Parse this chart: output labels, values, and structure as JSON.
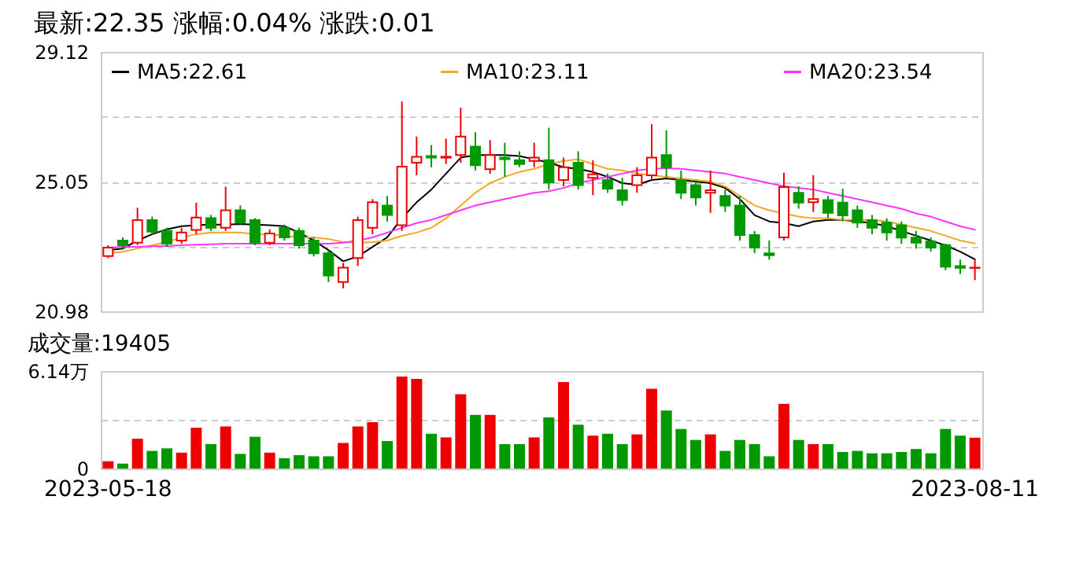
{
  "chart_data": [
    {
      "type": "candlestick",
      "title": "最新:22.35  涨幅:0.04%  涨跌:0.01",
      "categories": [
        "2023-05-18",
        null,
        null,
        null,
        null,
        null,
        null,
        null,
        null,
        null,
        null,
        null,
        null,
        null,
        null,
        null,
        null,
        null,
        null,
        null,
        null,
        null,
        null,
        null,
        null,
        null,
        null,
        null,
        null,
        null,
        null,
        null,
        null,
        null,
        null,
        null,
        null,
        null,
        null,
        null,
        null,
        null,
        null,
        null,
        null,
        null,
        null,
        null,
        null,
        null,
        null,
        null,
        null,
        null,
        null,
        null,
        null,
        null,
        null,
        "2023-08-11"
      ],
      "ohlc": [
        [
          22.71,
          23.05,
          22.65,
          22.98
        ],
        [
          23.2,
          23.3,
          22.95,
          23.05
        ],
        [
          23.13,
          24.23,
          23.06,
          23.84
        ],
        [
          23.84,
          23.95,
          23.4,
          23.48
        ],
        [
          23.5,
          23.6,
          23.0,
          23.1
        ],
        [
          23.2,
          23.6,
          23.1,
          23.45
        ],
        [
          23.53,
          24.39,
          23.4,
          23.92
        ],
        [
          23.9,
          24.0,
          23.5,
          23.6
        ],
        [
          23.6,
          24.89,
          23.5,
          24.15
        ],
        [
          24.15,
          24.3,
          23.7,
          23.76
        ],
        [
          23.84,
          23.9,
          23.05,
          23.13
        ],
        [
          23.13,
          23.55,
          23.05,
          23.42
        ],
        [
          23.6,
          23.7,
          23.2,
          23.3
        ],
        [
          23.5,
          23.6,
          22.95,
          23.05
        ],
        [
          23.2,
          23.3,
          22.7,
          22.8
        ],
        [
          22.8,
          22.9,
          21.9,
          22.1
        ],
        [
          21.9,
          22.5,
          21.7,
          22.35
        ],
        [
          22.65,
          23.95,
          22.4,
          23.84
        ],
        [
          23.6,
          24.5,
          23.4,
          24.4
        ],
        [
          24.3,
          24.6,
          23.8,
          24.0
        ],
        [
          23.68,
          27.56,
          23.5,
          25.52
        ],
        [
          25.64,
          26.46,
          25.25,
          25.83
        ],
        [
          25.85,
          26.2,
          25.5,
          25.8
        ],
        [
          25.8,
          26.4,
          25.6,
          25.83
        ],
        [
          25.88,
          27.37,
          25.64,
          26.46
        ],
        [
          26.15,
          26.6,
          25.4,
          25.56
        ],
        [
          25.44,
          26.35,
          25.3,
          25.88
        ],
        [
          25.8,
          26.27,
          25.2,
          25.75
        ],
        [
          25.72,
          26.0,
          25.5,
          25.6
        ],
        [
          25.7,
          26.27,
          25.5,
          25.8
        ],
        [
          25.72,
          26.74,
          24.8,
          25.02
        ],
        [
          25.1,
          25.8,
          24.9,
          25.5
        ],
        [
          25.64,
          26.0,
          24.8,
          24.94
        ],
        [
          25.17,
          25.72,
          24.62,
          25.28
        ],
        [
          25.1,
          25.3,
          24.7,
          24.83
        ],
        [
          24.78,
          25.17,
          24.3,
          24.47
        ],
        [
          24.94,
          25.5,
          24.7,
          25.25
        ],
        [
          25.25,
          26.85,
          25.1,
          25.8
        ],
        [
          25.88,
          26.66,
          25.2,
          25.5
        ],
        [
          25.1,
          25.4,
          24.5,
          24.7
        ],
        [
          24.94,
          25.1,
          24.3,
          24.55
        ],
        [
          24.7,
          25.4,
          24.07,
          24.78
        ],
        [
          24.6,
          24.8,
          24.1,
          24.3
        ],
        [
          24.3,
          24.6,
          23.2,
          23.37
        ],
        [
          23.37,
          23.5,
          22.8,
          22.98
        ],
        [
          22.8,
          23.2,
          22.6,
          22.74
        ],
        [
          23.3,
          25.33,
          23.2,
          24.88
        ],
        [
          24.7,
          24.9,
          24.2,
          24.39
        ],
        [
          24.4,
          25.25,
          24.1,
          24.5
        ],
        [
          24.47,
          24.6,
          23.9,
          24.07
        ],
        [
          24.39,
          24.83,
          23.8,
          23.99
        ],
        [
          24.15,
          24.3,
          23.6,
          23.76
        ],
        [
          23.84,
          24.0,
          23.4,
          23.6
        ],
        [
          23.76,
          23.9,
          23.2,
          23.45
        ],
        [
          23.68,
          23.8,
          23.1,
          23.29
        ],
        [
          23.29,
          23.5,
          22.95,
          23.13
        ],
        [
          23.17,
          23.3,
          22.85,
          22.98
        ],
        [
          23.06,
          23.1,
          22.27,
          22.38
        ],
        [
          22.4,
          22.6,
          22.15,
          22.34
        ],
        [
          22.34,
          22.58,
          21.96,
          22.35
        ]
      ],
      "colors": [
        "#ee0000",
        "#009900",
        "#ee0000",
        "#009900",
        "#009900",
        "#ee0000",
        "#ee0000",
        "#009900",
        "#ee0000",
        "#009900",
        "#009900",
        "#ee0000",
        "#009900",
        "#009900",
        "#009900",
        "#009900",
        "#ee0000",
        "#ee0000",
        "#ee0000",
        "#009900",
        "#ee0000",
        "#ee0000",
        "#009900",
        "#ee0000",
        "#ee0000",
        "#009900",
        "#ee0000",
        "#009900",
        "#009900",
        "#ee0000",
        "#009900",
        "#ee0000",
        "#009900",
        "#ee0000",
        "#009900",
        "#009900",
        "#ee0000",
        "#ee0000",
        "#009900",
        "#009900",
        "#009900",
        "#ee0000",
        "#009900",
        "#009900",
        "#009900",
        "#009900",
        "#ee0000",
        "#009900",
        "#ee0000",
        "#009900",
        "#009900",
        "#009900",
        "#009900",
        "#009900",
        "#009900",
        "#009900",
        "#009900",
        "#009900",
        "#009900",
        "#ee0000"
      ],
      "series": [
        {
          "name": "MA5:22.61",
          "type": "line",
          "color": "#000000",
          "values": [
            22.9,
            22.95,
            23.2,
            23.4,
            23.55,
            23.65,
            23.68,
            23.7,
            23.7,
            23.72,
            23.7,
            23.68,
            23.65,
            23.45,
            23.2,
            22.9,
            22.55,
            22.7,
            23.0,
            23.3,
            23.9,
            24.4,
            24.8,
            25.3,
            25.8,
            25.88,
            25.88,
            25.88,
            25.85,
            25.75,
            25.65,
            25.5,
            25.45,
            25.35,
            25.2,
            25.0,
            24.95,
            25.1,
            25.15,
            25.1,
            25.05,
            25.0,
            24.85,
            24.5,
            24.0,
            23.8,
            23.75,
            23.65,
            23.8,
            23.85,
            23.85,
            23.8,
            23.75,
            23.65,
            23.5,
            23.35,
            23.2,
            23.05,
            22.85,
            22.61
          ]
        },
        {
          "name": "MA10:23.11",
          "type": "line",
          "color": "#f5a623",
          "values": [
            22.8,
            22.85,
            22.95,
            23.05,
            23.15,
            23.3,
            23.4,
            23.45,
            23.45,
            23.45,
            23.4,
            23.4,
            23.35,
            23.3,
            23.3,
            23.25,
            23.15,
            23.13,
            23.15,
            23.2,
            23.35,
            23.45,
            23.6,
            23.9,
            24.3,
            24.7,
            25.0,
            25.2,
            25.35,
            25.45,
            25.6,
            25.7,
            25.75,
            25.6,
            25.45,
            25.4,
            25.3,
            25.25,
            25.2,
            25.15,
            25.1,
            25.05,
            24.9,
            24.6,
            24.3,
            24.15,
            24.05,
            23.95,
            23.9,
            23.9,
            23.85,
            23.85,
            23.85,
            23.8,
            23.7,
            23.6,
            23.5,
            23.35,
            23.2,
            23.11
          ]
        },
        {
          "name": "MA20:23.54",
          "type": "line",
          "color": "#ff33ff",
          "values": [
            22.98,
            23.0,
            23.0,
            23.02,
            23.03,
            23.05,
            23.07,
            23.08,
            23.1,
            23.1,
            23.1,
            23.1,
            23.1,
            23.1,
            23.1,
            23.1,
            23.13,
            23.2,
            23.3,
            23.45,
            23.6,
            23.75,
            23.85,
            24.0,
            24.15,
            24.3,
            24.4,
            24.5,
            24.6,
            24.7,
            24.75,
            24.85,
            25.0,
            25.1,
            25.2,
            25.3,
            25.4,
            25.45,
            25.47,
            25.45,
            25.4,
            25.35,
            25.3,
            25.2,
            25.1,
            25.0,
            24.9,
            24.85,
            24.8,
            24.7,
            24.6,
            24.5,
            24.4,
            24.3,
            24.2,
            24.05,
            23.95,
            23.8,
            23.65,
            23.54
          ]
        }
      ],
      "ylim": [
        20.98,
        29.12
      ],
      "yticks": [
        20.98,
        {
          "value": 23.015,
          "label": null
        },
        25.05,
        {
          "value": 27.085,
          "label": null
        },
        29.12
      ],
      "grid": true,
      "legend": "top left",
      "tick_labels": "y"
    },
    {
      "type": "bar",
      "title": "成交量:19405",
      "categories": [
        "2023-05-18",
        null,
        null,
        null,
        null,
        null,
        null,
        null,
        null,
        null,
        null,
        null,
        null,
        null,
        null,
        null,
        null,
        null,
        null,
        null,
        null,
        null,
        null,
        null,
        null,
        null,
        null,
        null,
        null,
        null,
        null,
        null,
        null,
        null,
        null,
        null,
        null,
        null,
        null,
        null,
        null,
        null,
        null,
        null,
        null,
        null,
        null,
        null,
        null,
        null,
        null,
        null,
        null,
        null,
        null,
        null,
        null,
        null,
        null,
        "2023-08-11"
      ],
      "values": [
        0.46,
        0.31,
        1.88,
        1.11,
        1.27,
        1.0,
        2.57,
        1.54,
        2.65,
        0.92,
        2.0,
        1.0,
        0.65,
        0.84,
        0.77,
        0.77,
        1.61,
        2.65,
        2.92,
        1.73,
        5.79,
        5.64,
        2.19,
        1.96,
        4.68,
        3.38,
        3.38,
        1.54,
        1.54,
        1.96,
        3.22,
        5.45,
        2.76,
        2.07,
        2.19,
        1.54,
        2.15,
        5.03,
        3.65,
        2.49,
        1.8,
        2.15,
        1.11,
        1.8,
        1.54,
        0.77,
        4.07,
        1.8,
        1.54,
        1.54,
        1.04,
        1.11,
        0.96,
        0.96,
        1.04,
        1.23,
        0.96,
        2.49,
        2.07,
        1.94
      ],
      "colors": [
        "#ee0000",
        "#009900",
        "#ee0000",
        "#009900",
        "#009900",
        "#ee0000",
        "#ee0000",
        "#009900",
        "#ee0000",
        "#009900",
        "#009900",
        "#ee0000",
        "#009900",
        "#009900",
        "#009900",
        "#009900",
        "#ee0000",
        "#ee0000",
        "#ee0000",
        "#009900",
        "#ee0000",
        "#ee0000",
        "#009900",
        "#ee0000",
        "#ee0000",
        "#009900",
        "#ee0000",
        "#009900",
        "#009900",
        "#ee0000",
        "#009900",
        "#ee0000",
        "#009900",
        "#ee0000",
        "#009900",
        "#009900",
        "#ee0000",
        "#ee0000",
        "#009900",
        "#009900",
        "#009900",
        "#ee0000",
        "#009900",
        "#009900",
        "#009900",
        "#009900",
        "#ee0000",
        "#009900",
        "#ee0000",
        "#009900",
        "#009900",
        "#009900",
        "#009900",
        "#009900",
        "#009900",
        "#009900",
        "#009900",
        "#009900",
        "#009900",
        "#ee0000"
      ],
      "ylim": [
        0,
        6.14
      ],
      "yticks": [
        0,
        {
          "value": 3.07,
          "label": null
        },
        {
          "value": 6.14,
          "label": "6.14万"
        }
      ],
      "grid": true
    }
  ]
}
